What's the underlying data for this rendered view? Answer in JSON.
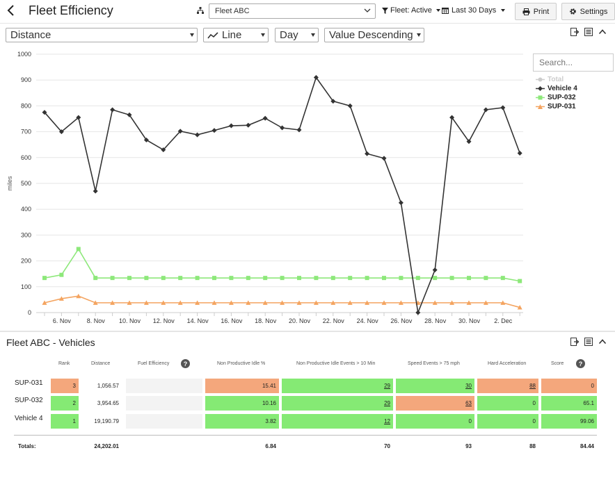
{
  "header": {
    "title": "Fleet Efficiency",
    "fleet_select": "Fleet ABC",
    "fleet_filter": "Fleet: Active",
    "date_filter": "Last 30 Days",
    "print_label": "Print",
    "settings_label": "Settings"
  },
  "controls": {
    "metric": "Distance",
    "chart_type": "Line",
    "period": "Day",
    "sort": "Value  Descending"
  },
  "search": {
    "placeholder": "Search..."
  },
  "legend": [
    {
      "label": "Total",
      "color": "#cccccc",
      "marker": "circle"
    },
    {
      "label": "Vehicle  4",
      "color": "#333333",
      "marker": "diamond"
    },
    {
      "label": "SUP-032",
      "color": "#8de87a",
      "marker": "square"
    },
    {
      "label": "SUP-031",
      "color": "#f4a460",
      "marker": "triangle"
    }
  ],
  "chart_data": {
    "type": "line",
    "title": "",
    "xlabel": "",
    "ylabel": "miles",
    "ylim": [
      0,
      1000
    ],
    "yticks": [
      0,
      100,
      200,
      300,
      400,
      500,
      600,
      700,
      800,
      900,
      1000
    ],
    "x_tick_labels": [
      "6. Nov",
      "8. Nov",
      "10. Nov",
      "12. Nov",
      "14. Nov",
      "16. Nov",
      "18. Nov",
      "20. Nov",
      "22. Nov",
      "24. Nov",
      "26. Nov",
      "28. Nov",
      "30. Nov",
      "2. Dec"
    ],
    "x": [
      "5. Nov",
      "6. Nov",
      "7. Nov",
      "8. Nov",
      "9. Nov",
      "10. Nov",
      "11. Nov",
      "12. Nov",
      "13. Nov",
      "14. Nov",
      "15. Nov",
      "16. Nov",
      "17. Nov",
      "18. Nov",
      "19. Nov",
      "20. Nov",
      "21. Nov",
      "22. Nov",
      "23. Nov",
      "24. Nov",
      "25. Nov",
      "26. Nov",
      "27. Nov",
      "28. Nov",
      "29. Nov",
      "30. Nov",
      "1. Dec",
      "2. Dec",
      "3. Dec"
    ],
    "series": [
      {
        "name": "Vehicle  4",
        "color": "#333333",
        "marker": "diamond",
        "values": [
          775,
          700,
          755,
          470,
          785,
          765,
          668,
          630,
          702,
          688,
          705,
          723,
          725,
          752,
          715,
          707,
          910,
          818,
          800,
          615,
          597,
          425,
          0,
          165,
          755,
          662,
          785,
          793,
          617
        ]
      },
      {
        "name": "SUP-032",
        "color": "#8de87a",
        "marker": "square",
        "values": [
          134,
          146,
          246,
          134,
          134,
          134,
          134,
          134,
          134,
          134,
          134,
          134,
          134,
          134,
          134,
          134,
          134,
          134,
          134,
          134,
          134,
          134,
          134,
          134,
          134,
          134,
          134,
          134,
          122
        ]
      },
      {
        "name": "SUP-031",
        "color": "#f4a460",
        "marker": "triangle",
        "values": [
          38,
          54,
          64,
          38,
          38,
          38,
          38,
          38,
          38,
          38,
          38,
          38,
          38,
          38,
          38,
          38,
          38,
          38,
          38,
          38,
          38,
          38,
          38,
          38,
          38,
          38,
          38,
          38,
          20
        ]
      }
    ]
  },
  "vehicles": {
    "title": "Fleet ABC - Vehicles",
    "columns": {
      "rank": "Rank",
      "distance": "Distance",
      "fuel": "Fuel Efficiency",
      "idle_pct": "Non Productive Idle %",
      "idle_events": "Non Productive Idle Events > 10 Min",
      "speed": "Speed Events > 75 mph",
      "accel": "Hard Acceleration",
      "score": "Score"
    },
    "rows": [
      {
        "name": "SUP-031",
        "rank": "3",
        "distance": "1,056.57",
        "fuel": "",
        "idle_pct": "15.41",
        "idle_events": "29",
        "speed": "30",
        "accel": "88",
        "score": "0"
      },
      {
        "name": "SUP-032",
        "rank": "2",
        "distance": "3,954.65",
        "fuel": "",
        "idle_pct": "10.16",
        "idle_events": "29",
        "speed": "63",
        "accel": "0",
        "score": "65.1"
      },
      {
        "name": "Vehicle 4",
        "rank": "1",
        "distance": "19,190.79",
        "fuel": "",
        "idle_pct": "3.82",
        "idle_events": "12",
        "speed": "0",
        "accel": "0",
        "score": "99.06"
      }
    ],
    "totals": {
      "label": "Totals:",
      "distance": "24,202.01",
      "idle_pct": "6.84",
      "idle_events": "70",
      "speed": "93",
      "accel": "88",
      "score": "84.44"
    }
  }
}
